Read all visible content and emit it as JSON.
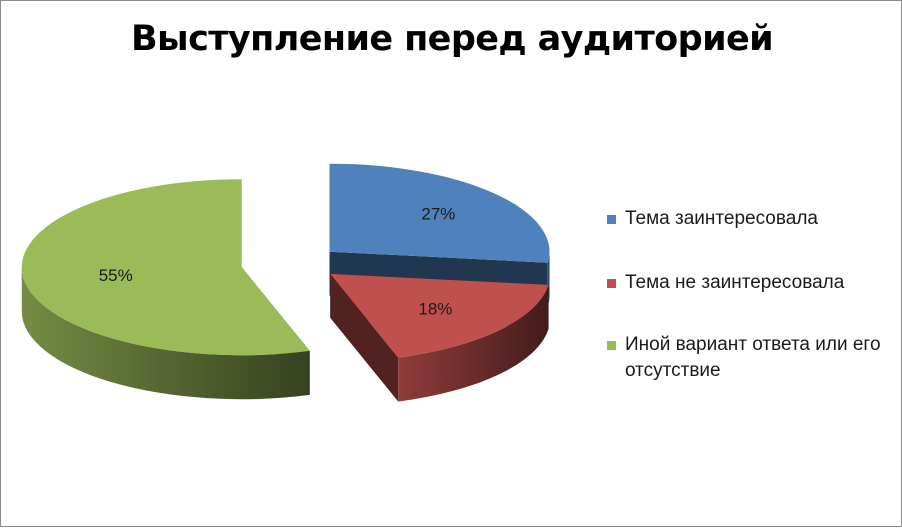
{
  "chart_data": {
    "type": "pie",
    "title": "Выступление перед аудиторией",
    "categories": [
      "Тема заинтересовала",
      "Тема не заинтересовала",
      "Иной вариант ответа или его отсутствие"
    ],
    "values": [
      27,
      18,
      55
    ],
    "labels": [
      "27%",
      "18%",
      "55%"
    ],
    "colors": [
      "#4f81bd",
      "#c0504d",
      "#9bbb59"
    ],
    "legend": "right",
    "style": "3d-exploded"
  }
}
